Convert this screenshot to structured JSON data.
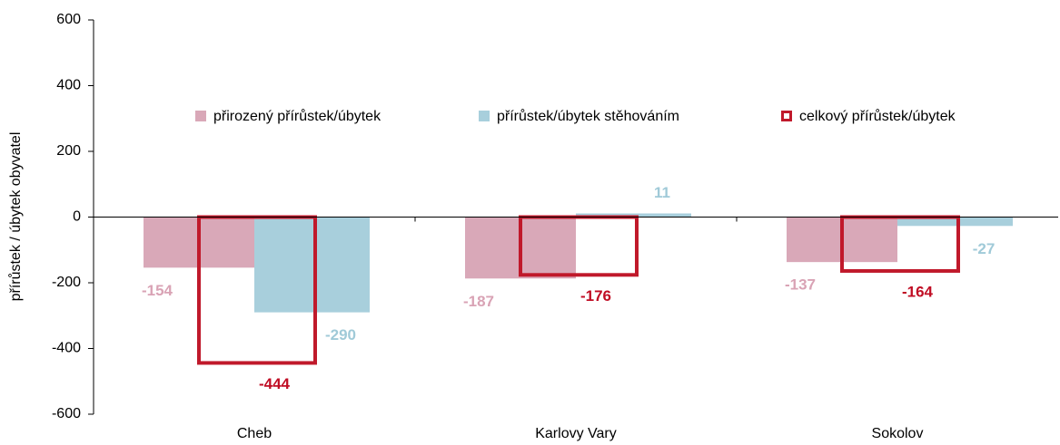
{
  "chart_data": {
    "type": "bar",
    "y_label": "přírůstek / úbytek obyvatel",
    "categories": [
      "Cheb",
      "Karlovy Vary",
      "Sokolov"
    ],
    "series": [
      {
        "name": "přirozený přírůstek/úbytek",
        "color": "#d9a8b8",
        "label_color": "#d9a3b5",
        "values": [
          -154,
          -187,
          -137
        ]
      },
      {
        "name": "přírůstek/úbytek stěhováním",
        "color": "#a8cfdc",
        "label_color": "#a0cad8",
        "values": [
          -290,
          11,
          -27
        ]
      },
      {
        "name": "celkový přírůstek/úbytek",
        "color": "#c0192b",
        "label_color": "#c00d24",
        "values": [
          -444,
          -176,
          -164
        ]
      }
    ],
    "ylim": [
      -600,
      600
    ],
    "yticks": [
      -600,
      -400,
      -200,
      0,
      200,
      400,
      600
    ]
  }
}
